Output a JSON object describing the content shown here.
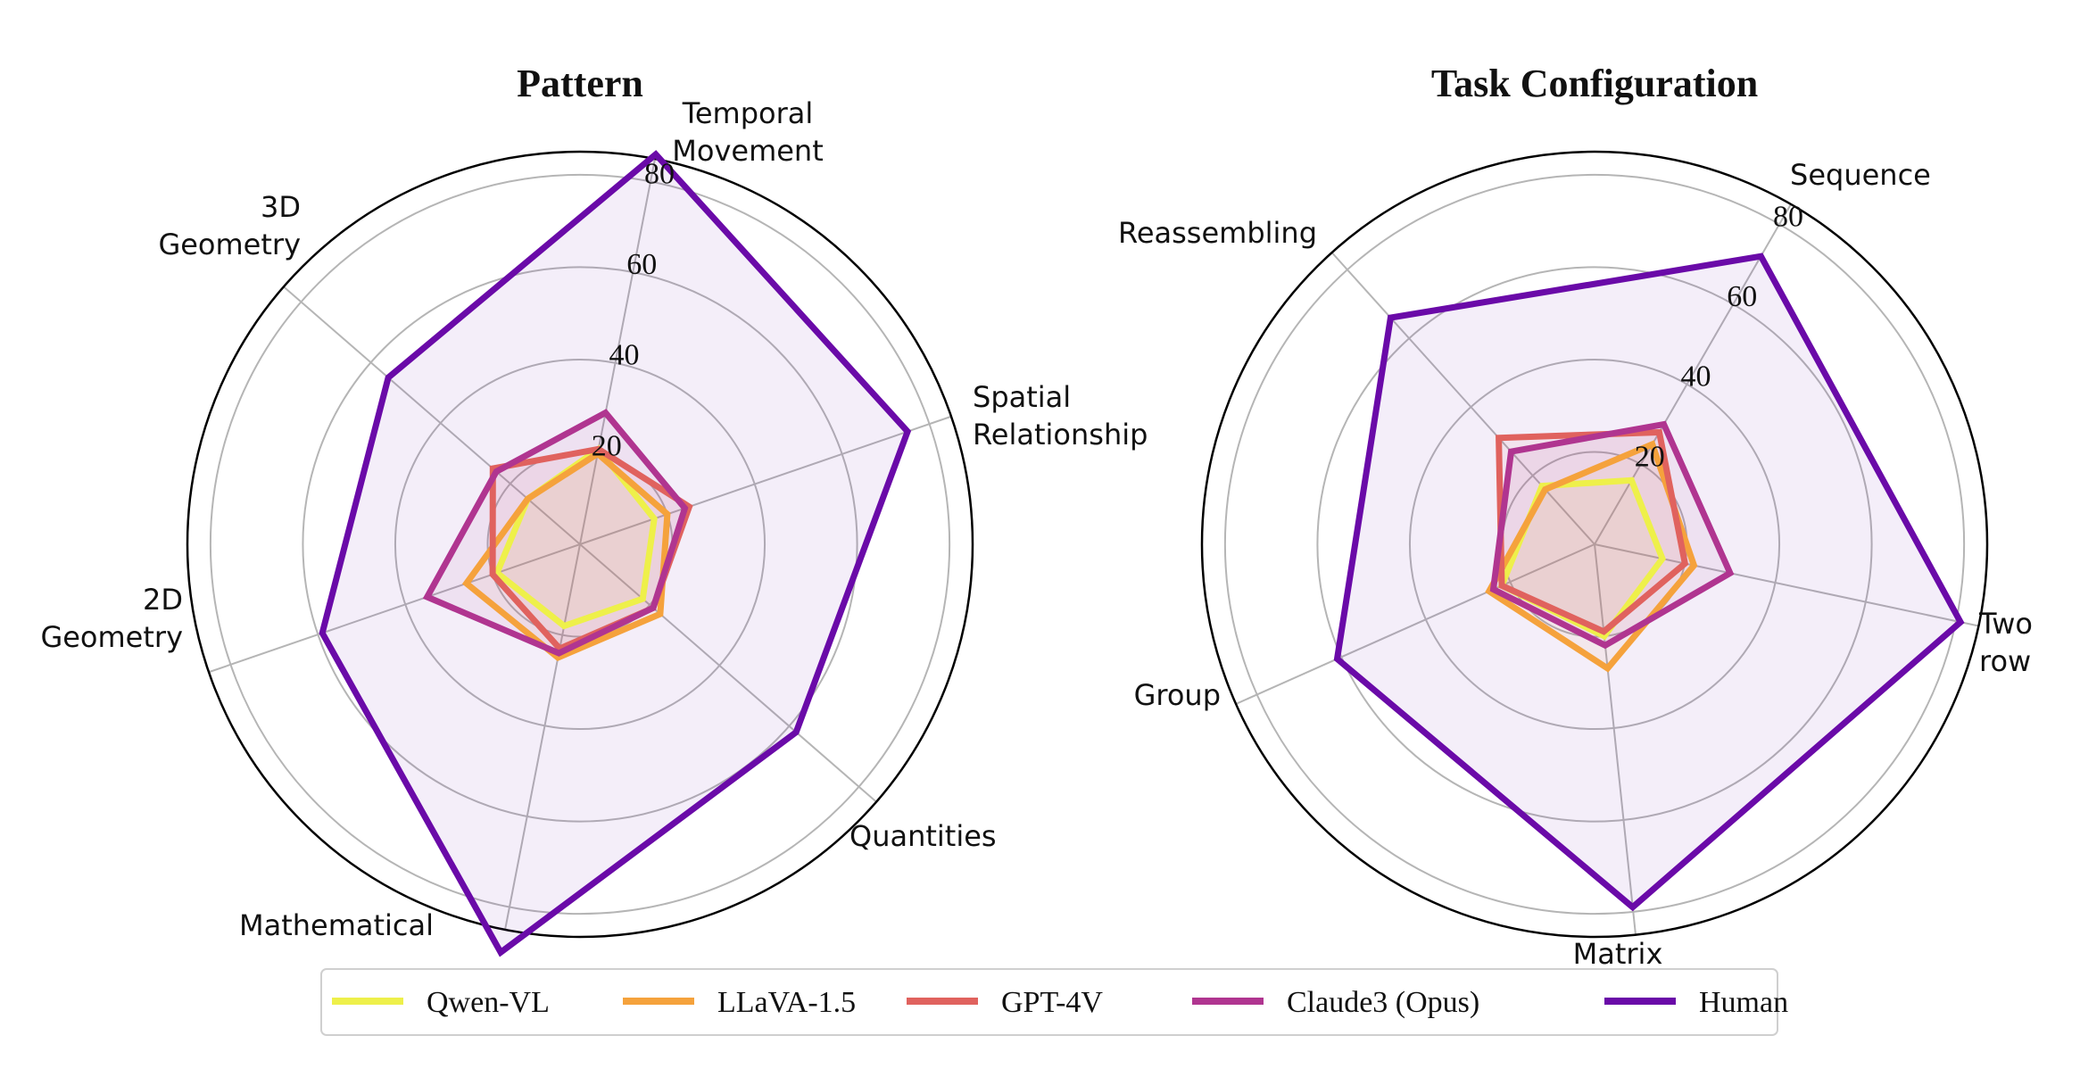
{
  "legend": {
    "items": [
      {
        "label": "Qwen-VL",
        "color": "#eef04a"
      },
      {
        "label": "LLaVA-1.5",
        "color": "#f5a23c"
      },
      {
        "label": "GPT-4V",
        "color": "#e0625e"
      },
      {
        "label": "Claude3 (Opus)",
        "color": "#b03590"
      },
      {
        "label": "Human",
        "color": "#6a0aa8"
      }
    ]
  },
  "chart_data": [
    {
      "type": "radar",
      "title": "Pattern",
      "rmax": 85,
      "rticks": [
        "20",
        "40",
        "60",
        "80"
      ],
      "rtick_values": [
        20,
        40,
        60,
        80
      ],
      "axes": [
        "Temporal\nMovement",
        "Spatial\nRelationship",
        "Quantities",
        "Mathematical",
        "2D\nGeometry",
        "3D\nGeometry"
      ],
      "series": [
        {
          "name": "Qwen-VL",
          "color": "#eef04a",
          "values": [
            21,
            17,
            18,
            18,
            19,
            15
          ]
        },
        {
          "name": "LLaVA-1.5",
          "color": "#f5a23c",
          "values": [
            20,
            20,
            23,
            25,
            26,
            15
          ]
        },
        {
          "name": "GPT-4V",
          "color": "#e0625e",
          "values": [
            21,
            25,
            21,
            23,
            20,
            25
          ]
        },
        {
          "name": "Claude3 (Opus)",
          "color": "#b03590",
          "values": [
            29,
            24,
            21,
            24,
            35,
            24
          ]
        },
        {
          "name": "Human",
          "color": "#6a0aa8",
          "values": [
            86,
            75,
            62,
            90,
            59,
            55
          ]
        }
      ]
    },
    {
      "type": "radar",
      "title": "Task Configuration",
      "rmax": 85,
      "rticks": [
        "20",
        "40",
        "60",
        "80"
      ],
      "rtick_values": [
        20,
        40,
        60,
        80
      ],
      "axes": [
        "Sequence",
        "Two\nrow",
        "Matrix",
        "Group",
        "Reassembling"
      ],
      "series": [
        {
          "name": "Qwen-VL",
          "color": "#eef04a",
          "values": [
            16,
            15,
            20,
            22,
            17
          ]
        },
        {
          "name": "LLaVA-1.5",
          "color": "#f5a23c",
          "values": [
            25,
            22,
            27,
            25,
            16
          ]
        },
        {
          "name": "GPT-4V",
          "color": "#e0625e",
          "values": [
            28,
            20,
            19,
            22,
            31
          ]
        },
        {
          "name": "Claude3 (Opus)",
          "color": "#b03590",
          "values": [
            30,
            30,
            22,
            24,
            27
          ]
        },
        {
          "name": "Human",
          "color": "#6a0aa8",
          "values": [
            72,
            81,
            79,
            61,
            66
          ]
        }
      ]
    }
  ]
}
